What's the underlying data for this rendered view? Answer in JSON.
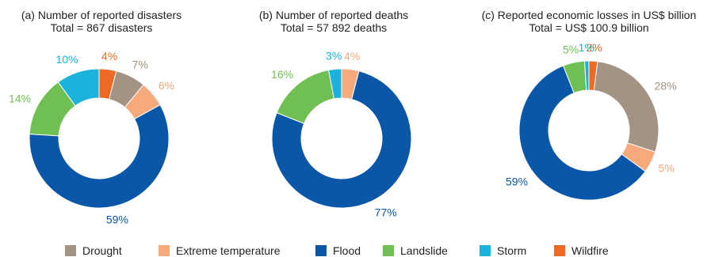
{
  "colors": {
    "Drought": "#a39384",
    "Extreme temperature": "#f6a97a",
    "Flood": "#0a56a8",
    "Landslide": "#6fbf52",
    "Storm": "#1bb3dc",
    "Wildfire": "#ee6a24"
  },
  "chart_data": [
    {
      "type": "pie",
      "title": "(a) Number of reported disasters",
      "subtitle": "Total = 867 disasters",
      "slices": [
        {
          "category": "Wildfire",
          "value": 4,
          "label": "4%"
        },
        {
          "category": "Drought",
          "value": 7,
          "label": "7%"
        },
        {
          "category": "Extreme temperature",
          "value": 6,
          "label": "6%"
        },
        {
          "category": "Flood",
          "value": 59,
          "label": "59%"
        },
        {
          "category": "Landslide",
          "value": 14,
          "label": "14%"
        },
        {
          "category": "Storm",
          "value": 10,
          "label": "10%"
        }
      ]
    },
    {
      "type": "pie",
      "title": "(b) Number of reported deaths",
      "subtitle": "Total =  57 892 deaths",
      "slices": [
        {
          "category": "Extreme temperature",
          "value": 4,
          "label": "4%"
        },
        {
          "category": "Flood",
          "value": 77,
          "label": "77%"
        },
        {
          "category": "Landslide",
          "value": 16,
          "label": "16%"
        },
        {
          "category": "Storm",
          "value": 3,
          "label": "3%"
        }
      ]
    },
    {
      "type": "pie",
      "title": "(c) Reported economic losses in US$ billion",
      "subtitle": "Total =  US$ 100.9 billion",
      "slices": [
        {
          "category": "Wildfire",
          "value": 2,
          "label": "2%"
        },
        {
          "category": "Drought",
          "value": 28,
          "label": "28%"
        },
        {
          "category": "Extreme temperature",
          "value": 5,
          "label": "5%"
        },
        {
          "category": "Flood",
          "value": 59,
          "label": "59%"
        },
        {
          "category": "Landslide",
          "value": 5,
          "label": "5%"
        },
        {
          "category": "Storm",
          "value": 1,
          "label": "1%"
        }
      ]
    }
  ],
  "legend": [
    {
      "name": "Drought"
    },
    {
      "name": "Extreme temperature"
    },
    {
      "name": "Flood"
    },
    {
      "name": "Landslide"
    },
    {
      "name": "Storm"
    },
    {
      "name": "Wildfire"
    }
  ]
}
